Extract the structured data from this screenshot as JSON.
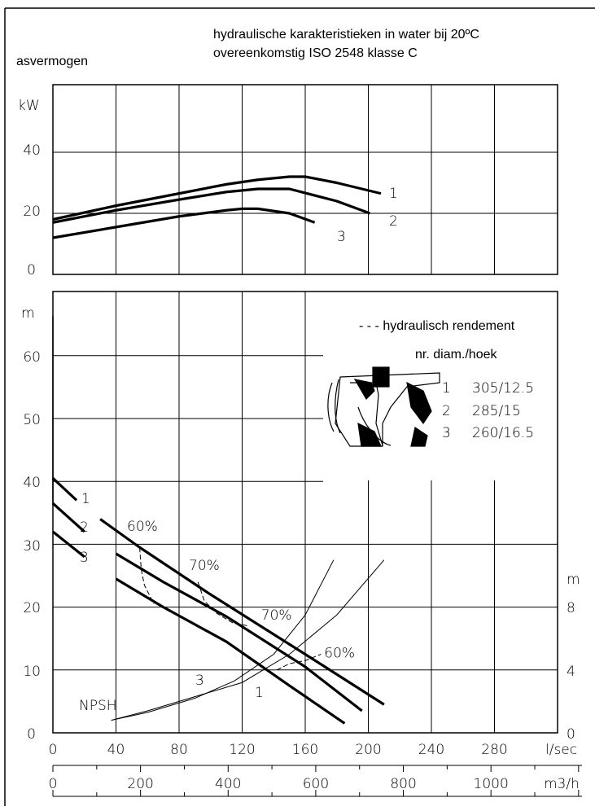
{
  "header": {
    "title_line1": "hydraulische karakteristieken in water bij 20ºC",
    "title_line2": "overeenkomstig ISO 2548 klasse C"
  },
  "power_chart": {
    "label": "asvermogen",
    "unit": "kW",
    "y_ticks": [
      "0",
      "20",
      "40"
    ]
  },
  "head_chart": {
    "unit": "m",
    "y_ticks": [
      "0",
      "10",
      "20",
      "30",
      "40",
      "50",
      "60"
    ],
    "npsh_unit": "m",
    "npsh_ticks": [
      "0",
      "4",
      "8"
    ],
    "npsh_label": "NPSH"
  },
  "legend": {
    "efficiency_label": "- - - hydraulisch rendement",
    "table_header": "nr.  diam./hoek",
    "rows": [
      {
        "nr": "1",
        "spec": "305/12.5"
      },
      {
        "nr": "2",
        "spec": "285/15"
      },
      {
        "nr": "3",
        "spec": "260/16.5"
      }
    ]
  },
  "axes": {
    "flow_ls": {
      "unit": "l/sec",
      "ticks": [
        "0",
        "40",
        "80",
        "120",
        "160",
        "200",
        "240",
        "280"
      ]
    },
    "flow_m3h": {
      "unit": "m3/h",
      "ticks": [
        "0",
        "200",
        "400",
        "600",
        "800",
        "1000"
      ]
    }
  },
  "chart_data": [
    {
      "type": "line",
      "title": "asvermogen",
      "xlabel": "l/sec",
      "ylabel": "kW",
      "xlim": [
        0,
        320
      ],
      "ylim": [
        0,
        50
      ],
      "grid": true,
      "series": [
        {
          "name": "1",
          "x": [
            0,
            40,
            80,
            110,
            130,
            150,
            160,
            180,
            208
          ],
          "y": [
            18,
            22.5,
            26.5,
            29.5,
            31,
            32,
            32,
            30,
            26.5
          ]
        },
        {
          "name": "2",
          "x": [
            0,
            40,
            80,
            110,
            130,
            150,
            180,
            201
          ],
          "y": [
            17,
            21,
            24.5,
            27,
            28,
            28,
            24,
            20
          ]
        },
        {
          "name": "3",
          "x": [
            0,
            40,
            80,
            110,
            120,
            130,
            150,
            166
          ],
          "y": [
            12,
            15.5,
            19,
            21,
            21.5,
            21.5,
            20,
            17
          ]
        }
      ]
    },
    {
      "type": "line",
      "title": "",
      "xlabel": "l/sec",
      "ylabel": "m",
      "xlim": [
        0,
        320
      ],
      "ylim": [
        0,
        70
      ],
      "grid": true,
      "series": [
        {
          "name": "1",
          "x": [
            0,
            15,
            30,
            55,
            100,
            160,
            210
          ],
          "y": [
            40.5,
            37,
            34,
            29.5,
            22,
            12.5,
            4.5
          ]
        },
        {
          "name": "2",
          "x": [
            0,
            20,
            40,
            70,
            110,
            160,
            196
          ],
          "y": [
            36.5,
            32,
            28.5,
            24,
            18.5,
            10.5,
            3.5
          ]
        },
        {
          "name": "3",
          "x": [
            0,
            20,
            40,
            70,
            110,
            150,
            185
          ],
          "y": [
            32,
            28,
            24.5,
            20,
            14.5,
            7.5,
            1.5
          ]
        }
      ],
      "efficiency_lines": [
        {
          "label": "60%",
          "x": [
            55,
            56,
            58,
            64
          ],
          "y": [
            29.5,
            26,
            23.5,
            20.5
          ]
        },
        {
          "label": "70%",
          "x": [
            92,
            96,
            104,
            114,
            124
          ],
          "y": [
            24,
            21,
            19,
            17.5,
            17
          ]
        },
        {
          "label": "60%",
          "x": [
            142,
            150,
            160,
            170
          ],
          "y": [
            10,
            11,
            11.5,
            12.5
          ]
        }
      ],
      "efficiency_labels": [
        {
          "text": "70%",
          "x": 132,
          "y": 18
        },
        {
          "text": "60%",
          "x": 172,
          "y": 12
        }
      ]
    },
    {
      "type": "line",
      "title": "",
      "xlabel": "l/sec",
      "ylabel": "NPSH (m)",
      "xlim": [
        0,
        320
      ],
      "ylim": [
        0,
        14
      ],
      "series": [
        {
          "name": "3",
          "x": [
            37,
            60,
            90,
            115,
            140,
            160,
            178
          ],
          "y": [
            0.8,
            1.3,
            2.2,
            3.3,
            5,
            7.5,
            11
          ]
        },
        {
          "name": "1",
          "x": [
            37,
            60,
            90,
            120,
            150,
            180,
            210
          ],
          "y": [
            0.8,
            1.4,
            2.3,
            3.2,
            5,
            7.5,
            11
          ]
        }
      ],
      "npsh_tick_values": [
        0,
        4,
        8
      ]
    }
  ]
}
